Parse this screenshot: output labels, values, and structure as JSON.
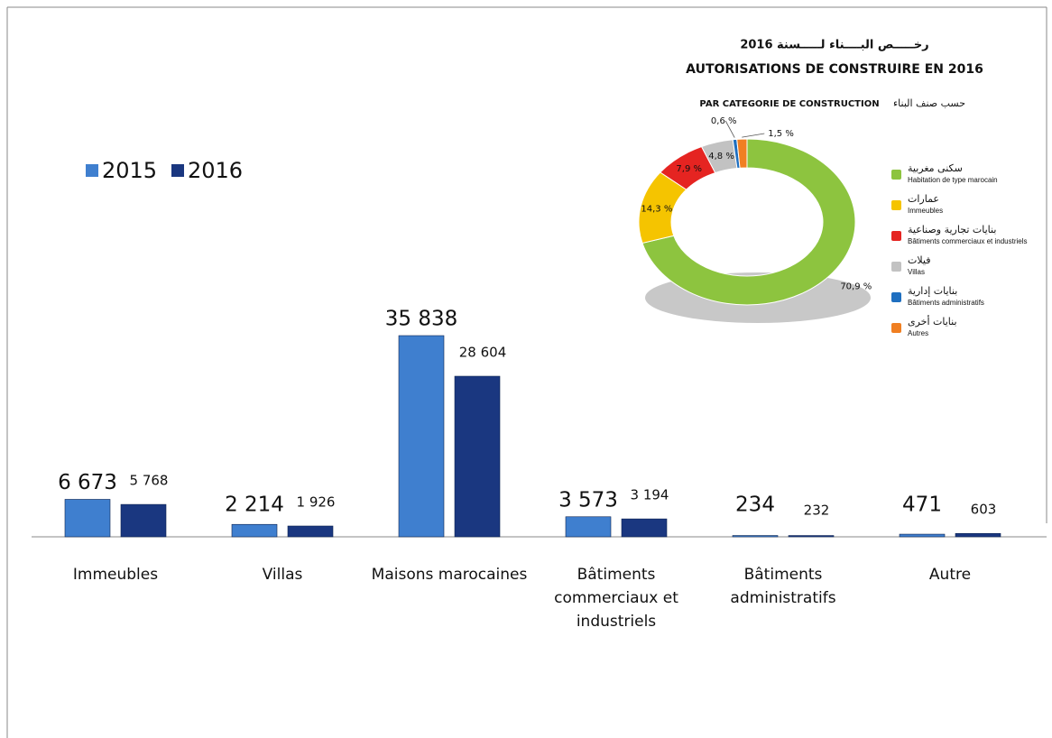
{
  "chart_data": [
    {
      "type": "bar",
      "categories": [
        "Immeubles",
        "Villas",
        "Maisons marocaines",
        "Bâtiments commerciaux et industriels",
        "Bâtiments administratifs",
        "Autre"
      ],
      "series": [
        {
          "name": "2015",
          "color": "#3f7fcf",
          "values": [
            6673,
            2214,
            35838,
            3573,
            234,
            471
          ],
          "value_labels": [
            "6 673",
            "2 214",
            "35 838",
            "3 573",
            "234",
            "471"
          ]
        },
        {
          "name": "2016",
          "color": "#1a3780",
          "values": [
            5768,
            1926,
            28604,
            3194,
            232,
            603
          ],
          "value_labels": [
            "5 768",
            "1 926",
            "28 604",
            "3 194",
            "232",
            "603"
          ]
        }
      ]
    },
    {
      "type": "pie",
      "title_ar": "رخـــــص البــــناء لـــــسنة 2016",
      "title": "AUTORISATIONS DE CONSTRUIRE EN 2016",
      "subtitle": "PAR CATEGORIE DE CONSTRUCTION",
      "subtitle_ar": "حسب صنف البناء",
      "categories": [
        "Habitation de type marocain",
        "Immeubles",
        "Bâtiments commerciaux et industriels",
        "Villas",
        "Bâtiments administratifs",
        "Autres"
      ],
      "categories_ar": [
        "سكنى مغربية",
        "عمارات",
        "بنايات تجارية وصناعية",
        "فيلات",
        "بنايات إدارية",
        "بنايات أخرى"
      ],
      "values": [
        70.9,
        14.3,
        7.9,
        4.8,
        0.6,
        1.5
      ],
      "value_labels": [
        "70,9 %",
        "14,3 %",
        "7,9 %",
        "4,8 %",
        "0,6 %",
        "1,5 %"
      ],
      "colors": [
        "#8dc43f",
        "#f5c400",
        "#e52421",
        "#c2c2c2",
        "#1f6fc0",
        "#f07f22"
      ]
    }
  ]
}
